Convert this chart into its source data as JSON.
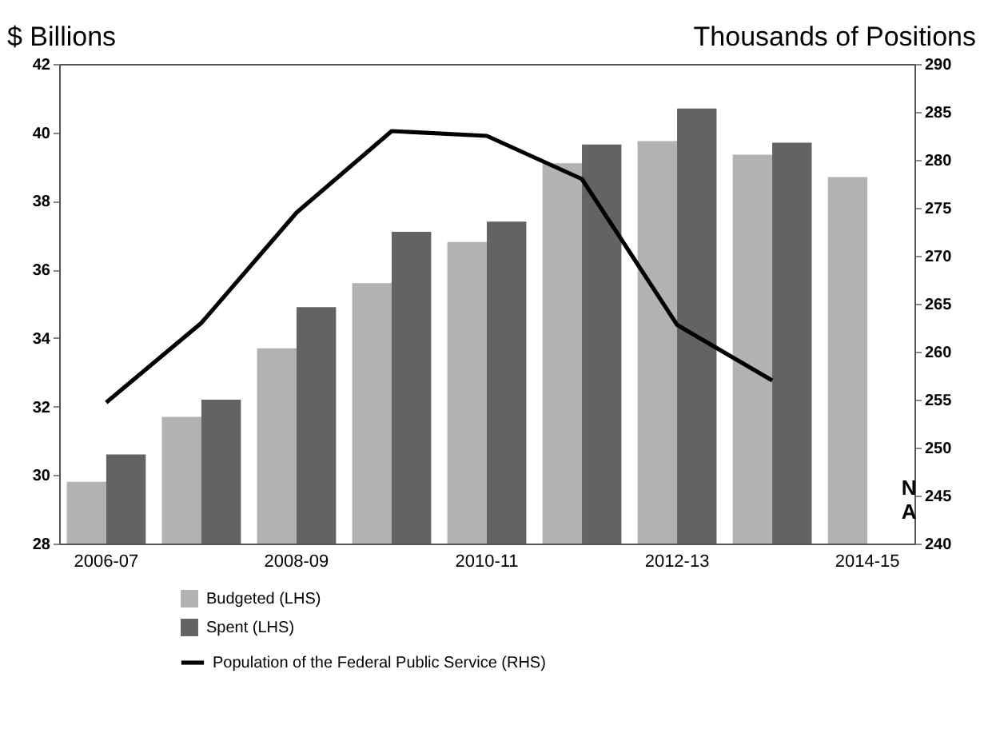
{
  "chart_data": {
    "type": "bar",
    "ylabel": "$ Billions",
    "y2label": "Thousands of Positions",
    "categories": [
      "2006-07",
      null,
      "2008-09",
      null,
      "2010-11",
      null,
      "2012-13",
      null,
      "2014-15"
    ],
    "series": [
      {
        "name": "Budgeted (LHS)",
        "color": "#b2b2b2",
        "values": [
          29.8,
          31.7,
          33.7,
          35.6,
          36.8,
          39.1,
          39.75,
          39.35,
          38.7
        ]
      },
      {
        "name": "Spent (LHS)",
        "color": "#636363",
        "values": [
          30.6,
          32.2,
          34.9,
          37.1,
          37.4,
          39.65,
          40.7,
          39.7,
          null
        ]
      },
      {
        "name": "Population of the Federal Public Service (RHS)",
        "type": "line",
        "axis": "y2",
        "color": "#000000",
        "values": [
          254.7,
          263,
          274.5,
          283,
          282.5,
          278,
          262.8,
          257,
          null
        ]
      }
    ],
    "ylim": [
      28,
      42
    ],
    "yticks": [
      28,
      30,
      32,
      34,
      36,
      38,
      40,
      42
    ],
    "y2lim": [
      240,
      290
    ],
    "y2ticks": [
      240,
      245,
      250,
      255,
      260,
      265,
      270,
      275,
      280,
      285,
      290
    ],
    "annotations": [
      {
        "text": "N\nA",
        "x": "2014-15",
        "y": 29.6
      }
    ],
    "legend": "bottom",
    "grid": false
  }
}
